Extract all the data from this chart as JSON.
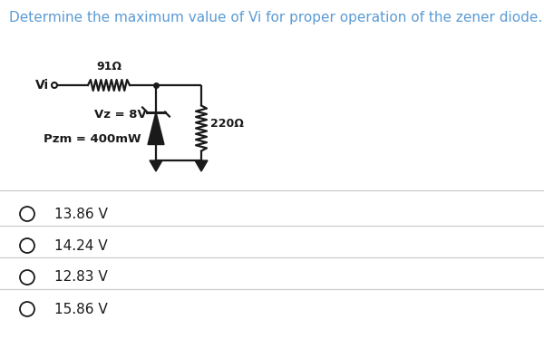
{
  "title": "Determine the maximum value of Vi for proper operation of the zener diode.",
  "title_color": "#5b9bd5",
  "title_fontsize": 11,
  "bg_color": "#ffffff",
  "options": [
    "13.86 V",
    "14.24 V",
    "12.83 V",
    "15.86 V"
  ],
  "option_fontsize": 11,
  "circuit_label_vi": "Vi",
  "circuit_label_r1": "91Ω",
  "circuit_label_r2": "220Ω",
  "circuit_label_vz": "Vz = 8V",
  "circuit_label_pzm": "Pzm = 400mW",
  "text_color": "#000000",
  "line_color": "#1a1a1a",
  "divider_color": "#cccccc"
}
